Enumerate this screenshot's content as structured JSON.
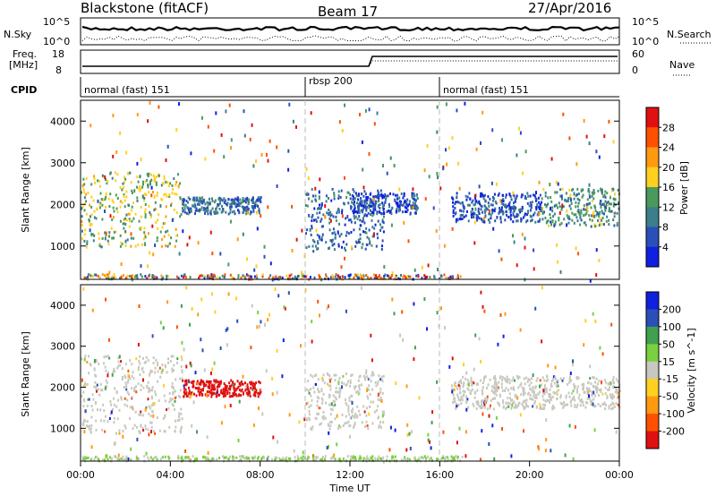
{
  "header": {
    "title": "Blackstone (fitACF)",
    "beam": "Beam 17",
    "date": "27/Apr/2016"
  },
  "noise_panel": {
    "left_label": "N.Sky",
    "right_label": "N.Search",
    "left_ticks": [
      "10^5",
      "10^0"
    ],
    "right_ticks": [
      "10^5",
      "10^0"
    ]
  },
  "freq_panel": {
    "left_label_1": "Freq.",
    "left_label_2": "[MHz]",
    "left_ticks": [
      "18",
      "8"
    ],
    "right_label": "Nave",
    "right_ticks": [
      "60",
      "0"
    ]
  },
  "cpid_panel": {
    "label": "CPID",
    "segments": [
      {
        "name": "normal (fast) 151",
        "start_hour": 0
      },
      {
        "name": "rbsp 200",
        "start_hour": 10
      },
      {
        "name": "normal (fast) 151",
        "start_hour": 16
      }
    ]
  },
  "x_axis": {
    "label": "Time UT",
    "ticks": [
      "00:00",
      "04:00",
      "08:00",
      "12:00",
      "16:00",
      "20:00",
      "00:00"
    ]
  },
  "colors": {
    "power_scale": [
      "#1020e0",
      "#2a4fb8",
      "#3c7f8a",
      "#4a9a5c",
      "#ffd020",
      "#ff9a10",
      "#ff5000",
      "#e01010"
    ],
    "velocity_scale": [
      "#1020e0",
      "#2a4fb8",
      "#40a050",
      "#7ad040",
      "#c8c8c0",
      "#ffd020",
      "#ff9a10",
      "#ff5000",
      "#e01010"
    ]
  },
  "chart_data": [
    {
      "type": "heatmap",
      "title": "Power",
      "xlabel": "",
      "ylabel": "Slant Range [km]",
      "xlim": [
        0,
        24
      ],
      "ylim": [
        200,
        4500
      ],
      "yticks": [
        "1000",
        "2000",
        "3000",
        "4000"
      ],
      "colorbar_label": "Power [dB]",
      "colorbar_ticks": [
        "4",
        "8",
        "12",
        "16",
        "20",
        "24",
        "28"
      ],
      "colorbar_range": [
        0,
        32
      ],
      "echo_bands": [
        {
          "t0": 0.0,
          "t1": 4.5,
          "r0": 1000,
          "r1": 2800,
          "level": 16
        },
        {
          "t0": 4.5,
          "t1": 8.0,
          "r0": 1800,
          "r1": 2200,
          "level": 8
        },
        {
          "t0": 10.0,
          "t1": 13.5,
          "r0": 900,
          "r1": 2400,
          "level": 8
        },
        {
          "t0": 12.0,
          "t1": 15.0,
          "r0": 1800,
          "r1": 2300,
          "level": 6
        },
        {
          "t0": 16.5,
          "t1": 20.5,
          "r0": 1600,
          "r1": 2300,
          "level": 6
        },
        {
          "t0": 20.5,
          "t1": 24.0,
          "r0": 1500,
          "r1": 2400,
          "level": 12
        }
      ]
    },
    {
      "type": "heatmap",
      "title": "Velocity",
      "xlabel": "Time UT",
      "ylabel": "Slant Range [km]",
      "xlim": [
        0,
        24
      ],
      "ylim": [
        200,
        4500
      ],
      "yticks": [
        "1000",
        "2000",
        "3000",
        "4000"
      ],
      "colorbar_label": "Velocity [m s^-1]",
      "colorbar_ticks": [
        "200",
        "100",
        "50",
        "15",
        "-15",
        "-50",
        "-100",
        "-200"
      ],
      "colorbar_range": [
        -250,
        250
      ],
      "echo_bands": [
        {
          "t0": 0.0,
          "t1": 4.5,
          "r0": 900,
          "r1": 2800,
          "level": 0
        },
        {
          "t0": 4.5,
          "t1": 8.0,
          "r0": 1800,
          "r1": 2200,
          "level": -200
        },
        {
          "t0": 10.0,
          "t1": 13.5,
          "r0": 1000,
          "r1": 2400,
          "level": 0
        },
        {
          "t0": 16.5,
          "t1": 24.0,
          "r0": 1500,
          "r1": 2300,
          "level": 0
        }
      ]
    }
  ]
}
